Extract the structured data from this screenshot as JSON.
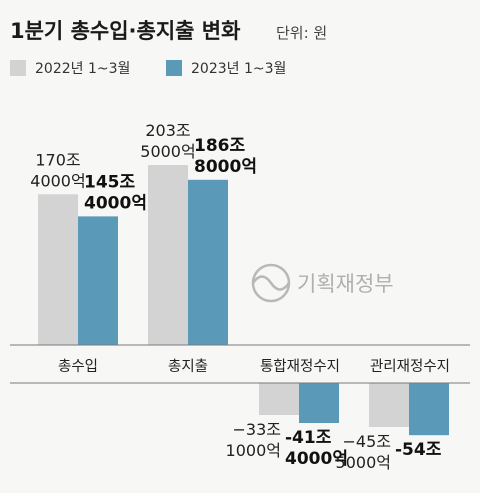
{
  "header": {
    "title": "1분기 총수입·총지출 변화",
    "unit": "단위: 원"
  },
  "watermark": "기획재정부",
  "colors": {
    "series_2022": "#d3d3d3",
    "series_2023": "#5a9ab8",
    "watermark": "#b0b0b0"
  },
  "chart_data": {
    "type": "bar",
    "categories": [
      "총수입",
      "총지출",
      "통합재정수지",
      "관리재정수지"
    ],
    "unit": "조 원",
    "ylim": [
      -60,
      205
    ],
    "grid": false,
    "legend_position": "top-left",
    "series": [
      {
        "name": "2022년 1~3월",
        "values": [
          170.4,
          203.5,
          -33.1,
          -45.5
        ],
        "labels": [
          [
            "170조",
            "4000억"
          ],
          [
            "203조",
            "5000억"
          ],
          [
            "−33조",
            "1000억"
          ],
          [
            "−45조",
            "5000억"
          ]
        ]
      },
      {
        "name": "2023년 1~3월",
        "values": [
          145.4,
          186.8,
          -41.4,
          -54
        ],
        "labels": [
          [
            "145조",
            "4000억"
          ],
          [
            "186조",
            "8000억"
          ],
          [
            "-41조",
            "4000억"
          ],
          [
            "-54조"
          ]
        ]
      }
    ]
  }
}
